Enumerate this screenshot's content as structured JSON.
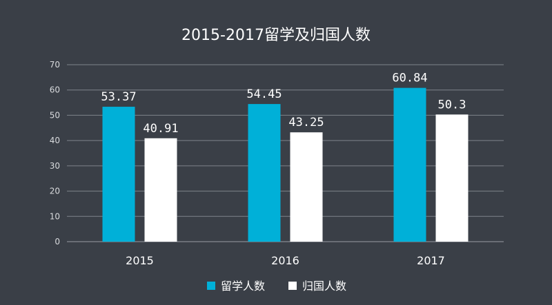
{
  "chart_data": {
    "type": "bar",
    "title": "2015-2017留学及归国人数",
    "categories": [
      "2015",
      "2016",
      "2017"
    ],
    "series": [
      {
        "name": "留学人数",
        "values": [
          53.37,
          54.45,
          60.84
        ],
        "color": "#00b0d8"
      },
      {
        "name": "归国人数",
        "values": [
          40.91,
          43.25,
          50.3
        ],
        "color": "#ffffff"
      }
    ],
    "data_labels": [
      [
        "53.37",
        "54.45",
        "60.84"
      ],
      [
        "40.91",
        "43.25",
        "50.3"
      ]
    ],
    "yticks": [
      "0",
      "10",
      "20",
      "30",
      "40",
      "50",
      "60",
      "70"
    ],
    "ylim": [
      0,
      70
    ],
    "grid": true,
    "legend_position": "bottom",
    "background": "#3a3f47"
  }
}
